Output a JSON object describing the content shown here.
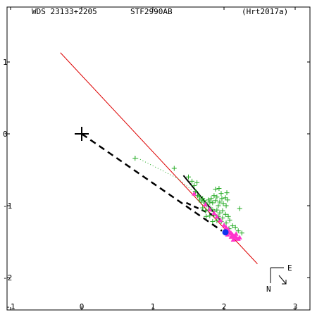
{
  "header": {
    "wds": "WDS 23133+2205",
    "discoverer": "STF2990AB",
    "reference": "(Hrt2017a)"
  },
  "compass": {
    "east_label": "E",
    "north_label": "N"
  },
  "colors": {
    "axes": "#000000",
    "orbit_line": "#dd0000",
    "observations": "#22aa22",
    "speckle": "#ff33cc",
    "recent": "#1133ee",
    "primary": "#000000"
  },
  "chart_data": {
    "type": "scatter",
    "title": "",
    "xlabel": "",
    "ylabel": "",
    "xlim": [
      -1.0,
      3.0
    ],
    "ylim": [
      -2.2,
      1.45
    ],
    "x_ticks": [
      {
        "v": -1,
        "label": "-1"
      },
      {
        "v": 0,
        "label": "0"
      },
      {
        "v": 1,
        "label": "1"
      },
      {
        "v": 2,
        "label": "2"
      },
      {
        "v": 3,
        "label": "3"
      }
    ],
    "y_ticks": [
      {
        "v": 1,
        "label": "1"
      },
      {
        "v": 0,
        "label": "0"
      },
      {
        "v": -1,
        "label": "-1"
      },
      {
        "v": -2,
        "label": "-2"
      }
    ],
    "primary_star": {
      "x": 0.0,
      "y": 0.0
    },
    "orbit_line": {
      "x1": -0.3,
      "y1": 1.13,
      "x2": 2.47,
      "y2": -1.81
    },
    "dashed_path": [
      {
        "x": 0.0,
        "y": 0.0
      },
      {
        "x": 1.97,
        "y": -1.35
      }
    ],
    "dashed_path_2": [
      {
        "x": 1.47,
        "y": -0.96
      },
      {
        "x": 1.93,
        "y": -1.17
      }
    ],
    "solid_segment": [
      {
        "x": 1.43,
        "y": -0.58
      },
      {
        "x": 1.97,
        "y": -1.23
      }
    ],
    "dotted_path": [
      {
        "x": 0.75,
        "y": -0.32
      },
      {
        "x": 1.35,
        "y": -0.62
      },
      {
        "x": 1.9,
        "y": -1.08
      }
    ],
    "series": [
      {
        "marker": "plus",
        "color": "#22aa22",
        "points": [
          {
            "x": 0.75,
            "y": -0.34
          },
          {
            "x": 1.3,
            "y": -0.48
          },
          {
            "x": 1.5,
            "y": -0.6
          },
          {
            "x": 1.55,
            "y": -0.66
          },
          {
            "x": 1.58,
            "y": -0.72
          },
          {
            "x": 1.6,
            "y": -0.8
          },
          {
            "x": 1.63,
            "y": -0.86
          },
          {
            "x": 1.65,
            "y": -0.87
          },
          {
            "x": 1.66,
            "y": -0.92
          },
          {
            "x": 1.68,
            "y": -0.95
          },
          {
            "x": 1.7,
            "y": -0.9
          },
          {
            "x": 1.72,
            "y": -0.93
          },
          {
            "x": 1.74,
            "y": -0.97
          },
          {
            "x": 1.76,
            "y": -0.99
          },
          {
            "x": 1.78,
            "y": -0.92
          },
          {
            "x": 1.8,
            "y": -0.95
          },
          {
            "x": 1.82,
            "y": -0.9
          },
          {
            "x": 1.84,
            "y": -0.96
          },
          {
            "x": 1.86,
            "y": -0.86
          },
          {
            "x": 1.88,
            "y": -0.93
          },
          {
            "x": 1.9,
            "y": -0.88
          },
          {
            "x": 1.92,
            "y": -1.0
          },
          {
            "x": 1.94,
            "y": -0.95
          },
          {
            "x": 1.96,
            "y": -0.83
          },
          {
            "x": 1.97,
            "y": -0.9
          },
          {
            "x": 1.99,
            "y": -0.97
          },
          {
            "x": 2.02,
            "y": -0.89
          },
          {
            "x": 2.03,
            "y": -1.0
          },
          {
            "x": 2.05,
            "y": -0.92
          },
          {
            "x": 1.7,
            "y": -1.03
          },
          {
            "x": 1.74,
            "y": -1.07
          },
          {
            "x": 1.78,
            "y": -1.06
          },
          {
            "x": 1.82,
            "y": -1.05
          },
          {
            "x": 1.86,
            "y": -1.08
          },
          {
            "x": 1.9,
            "y": -1.06
          },
          {
            "x": 1.94,
            "y": -1.1
          },
          {
            "x": 1.98,
            "y": -1.07
          },
          {
            "x": 2.02,
            "y": -1.12
          },
          {
            "x": 2.06,
            "y": -1.15
          },
          {
            "x": 1.75,
            "y": -1.15
          },
          {
            "x": 1.8,
            "y": -1.14
          },
          {
            "x": 1.86,
            "y": -1.13
          },
          {
            "x": 1.92,
            "y": -1.15
          },
          {
            "x": 1.98,
            "y": -1.17
          },
          {
            "x": 1.84,
            "y": -1.22
          },
          {
            "x": 1.9,
            "y": -1.21
          },
          {
            "x": 1.96,
            "y": -1.22
          },
          {
            "x": 2.03,
            "y": -1.24
          },
          {
            "x": 2.08,
            "y": -1.2
          },
          {
            "x": 2.12,
            "y": -1.28
          },
          {
            "x": 2.07,
            "y": -1.32
          },
          {
            "x": 2.16,
            "y": -1.3
          },
          {
            "x": 2.2,
            "y": -1.35
          },
          {
            "x": 2.22,
            "y": -1.04
          },
          {
            "x": 2.25,
            "y": -1.38
          },
          {
            "x": 2.04,
            "y": -0.82
          },
          {
            "x": 1.93,
            "y": -0.76
          },
          {
            "x": 1.88,
            "y": -0.77
          },
          {
            "x": 1.62,
            "y": -0.68
          }
        ]
      },
      {
        "marker": "triangle",
        "color": "#ff33cc",
        "points": [
          {
            "x": 1.58,
            "y": -0.83
          },
          {
            "x": 1.74,
            "y": -0.98
          },
          {
            "x": 1.8,
            "y": -1.05
          },
          {
            "x": 1.86,
            "y": -1.1
          },
          {
            "x": 1.9,
            "y": -1.15
          },
          {
            "x": 1.95,
            "y": -1.2
          },
          {
            "x": 2.0,
            "y": -1.27
          },
          {
            "x": 2.03,
            "y": -1.3
          },
          {
            "x": 2.06,
            "y": -1.33
          },
          {
            "x": 2.08,
            "y": -1.36
          },
          {
            "x": 2.1,
            "y": -1.38
          },
          {
            "x": 2.12,
            "y": -1.4
          },
          {
            "x": 2.14,
            "y": -1.42
          },
          {
            "x": 2.16,
            "y": -1.43
          },
          {
            "x": 2.18,
            "y": -1.45
          },
          {
            "x": 2.2,
            "y": -1.46
          },
          {
            "x": 2.22,
            "y": -1.44
          },
          {
            "x": 2.1,
            "y": -1.43
          },
          {
            "x": 2.13,
            "y": -1.47
          },
          {
            "x": 2.17,
            "y": -1.39
          },
          {
            "x": 2.05,
            "y": -1.4
          }
        ]
      },
      {
        "marker": "dot",
        "color": "#1133ee",
        "points": [
          {
            "x": 2.02,
            "y": -1.37
          }
        ]
      }
    ]
  }
}
